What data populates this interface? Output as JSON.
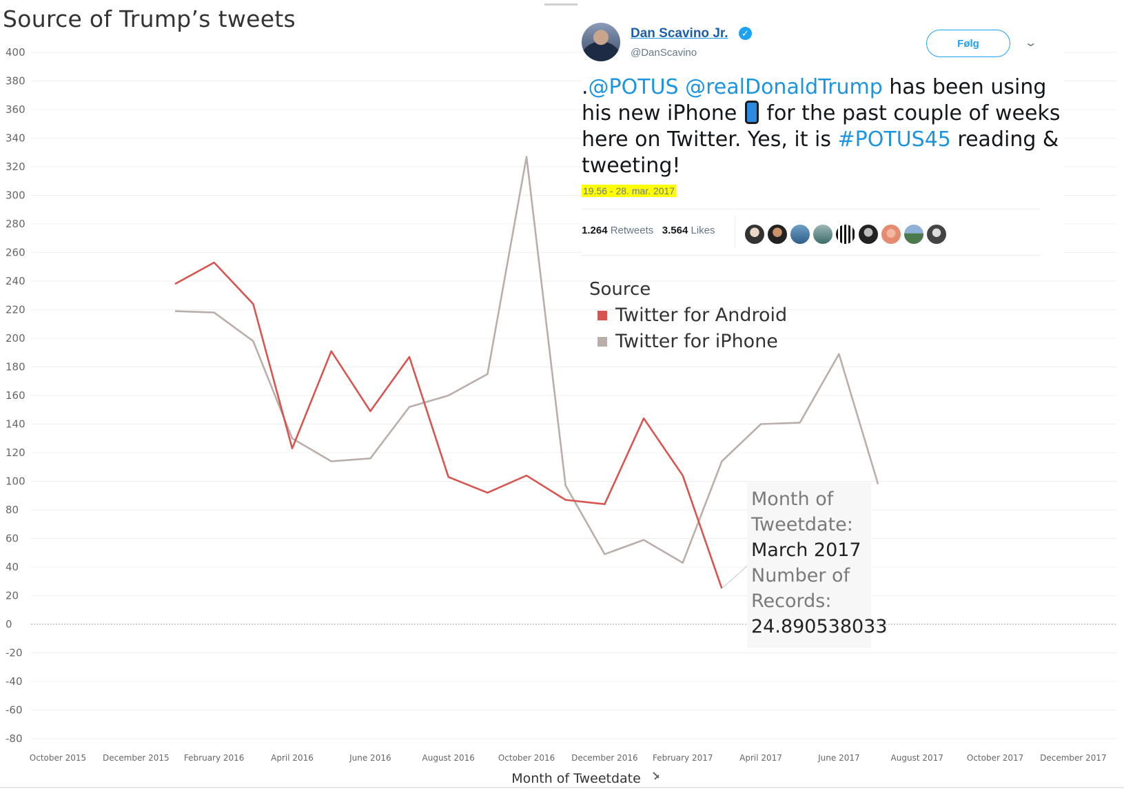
{
  "title": "Source of  Trump’s tweets",
  "chart_data": {
    "type": "line",
    "x": [
      "2016-01",
      "2016-02",
      "2016-03",
      "2016-04",
      "2016-05",
      "2016-06",
      "2016-07",
      "2016-08",
      "2016-09",
      "2016-10",
      "2016-11",
      "2016-12",
      "2017-01",
      "2017-02",
      "2017-03",
      "2017-04",
      "2017-05",
      "2017-06",
      "2017-07"
    ],
    "series": [
      {
        "name": "Twitter for Android",
        "color": "#d9534f",
        "values": [
          238,
          253,
          224,
          123,
          191,
          149,
          187,
          103,
          92,
          104,
          87,
          84,
          144,
          104,
          25,
          null,
          null,
          null,
          null
        ]
      },
      {
        "name": "Twitter for iPhone",
        "color": "#b9aeaa",
        "values": [
          219,
          218,
          198,
          130,
          114,
          116,
          152,
          160,
          175,
          327,
          97,
          49,
          59,
          43,
          114,
          140,
          141,
          189,
          98
        ]
      }
    ],
    "xlabel": "Month of Tweetdate",
    "ylabel": "",
    "ylim": [
      -80,
      400
    ],
    "yticks": [
      400,
      380,
      360,
      340,
      320,
      300,
      280,
      260,
      240,
      220,
      200,
      180,
      160,
      140,
      120,
      100,
      80,
      60,
      40,
      20,
      0,
      -20,
      -40,
      -60,
      -80
    ],
    "xticks": [
      {
        "label": "October 2015",
        "month": "2015-10"
      },
      {
        "label": "December 2015",
        "month": "2015-12"
      },
      {
        "label": "February 2016",
        "month": "2016-02"
      },
      {
        "label": "April 2016",
        "month": "2016-04"
      },
      {
        "label": "June 2016",
        "month": "2016-06"
      },
      {
        "label": "August 2016",
        "month": "2016-08"
      },
      {
        "label": "October 2016",
        "month": "2016-10"
      },
      {
        "label": "December 2016",
        "month": "2016-12"
      },
      {
        "label": "February 2017",
        "month": "2017-02"
      },
      {
        "label": "April 2017",
        "month": "2017-04"
      },
      {
        "label": "June 2017",
        "month": "2017-06"
      },
      {
        "label": "August 2017",
        "month": "2017-08"
      },
      {
        "label": "October 2017",
        "month": "2017-10"
      },
      {
        "label": "December 2017",
        "month": "2017-12"
      }
    ],
    "grid": true,
    "legend": {
      "title": "Source",
      "placement": "right",
      "items": [
        "Twitter for Android",
        "Twitter for iPhone"
      ]
    },
    "xaxis_pin_icon": "pin-icon"
  },
  "tooltip": {
    "label_month": "Month of Tweetdate:",
    "value_month": "March 2017",
    "label_records": "Number of Records:",
    "value_records": "24.890538033"
  },
  "tweet": {
    "name": "Dan Scavino Jr.",
    "handle": "@DanScavino",
    "follow_label": "Følg",
    "text_mention1": "@POTUS",
    "text_mention2": "@realDonaldTrump",
    "text_part1": " has been using his new iPhone ",
    "text_part2": " for the past couple of weeks here on Twitter. Yes, it is ",
    "text_hashtag": "#POTUS45",
    "text_part3": " reading & tweeting!",
    "timestamp": "19.56 - 28. mar. 2017",
    "retweets_count": "1.264",
    "retweets_label": "Retweets",
    "likes_count": "3.564",
    "likes_label": "Likes",
    "verified_icon": "verified-badge-icon",
    "phone_icon": "mobile-phone-icon"
  }
}
